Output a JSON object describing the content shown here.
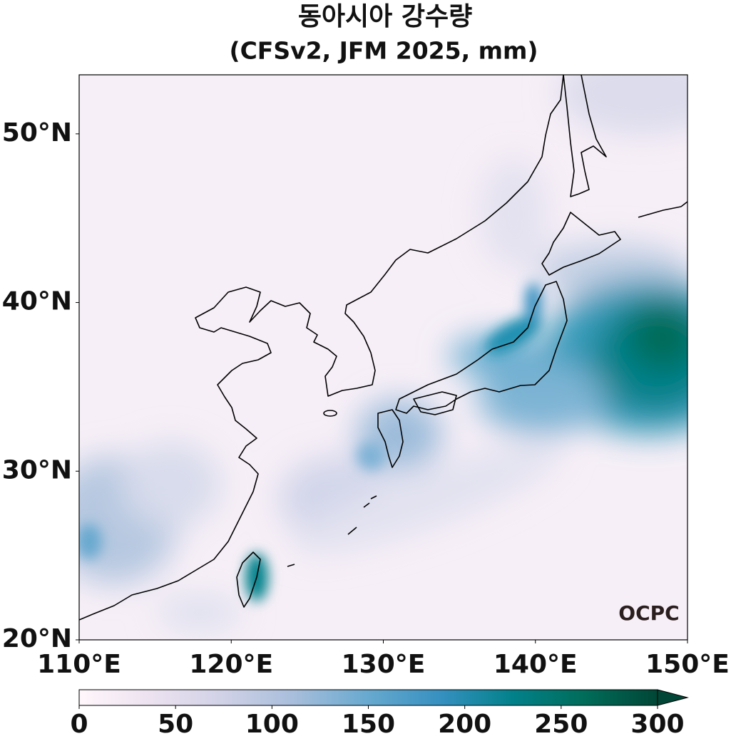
{
  "title": "동아시아 강수량",
  "subtitle": "(CFSv2, JFM 2025, mm)",
  "lon_range": [
    110,
    150
  ],
  "lat_range": [
    20,
    53.5
  ],
  "lon_ticks": [
    {
      "value": 110,
      "label": "110°E"
    },
    {
      "value": 120,
      "label": "120°E"
    },
    {
      "value": 130,
      "label": "130°E"
    },
    {
      "value": 140,
      "label": "140°E"
    },
    {
      "value": 150,
      "label": "150°E"
    }
  ],
  "lat_ticks": [
    {
      "value": 20,
      "label": "20°N"
    },
    {
      "value": 30,
      "label": "30°N"
    },
    {
      "value": 40,
      "label": "40°N"
    },
    {
      "value": 50,
      "label": "50°N"
    }
  ],
  "colorbar": {
    "range": [
      0,
      300
    ],
    "ticks": [
      0,
      50,
      100,
      150,
      200,
      250,
      300
    ],
    "colors": [
      "#fff7fb",
      "#ece2f0",
      "#d0d1e6",
      "#a6bddb",
      "#67a9cf",
      "#3690c0",
      "#02818a",
      "#016c59",
      "#014636"
    ],
    "extend": "max"
  },
  "logo": "OCPC"
}
